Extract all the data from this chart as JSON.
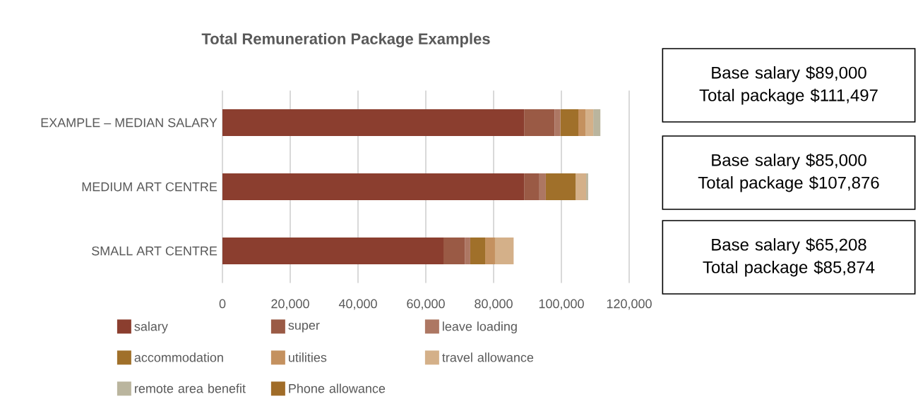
{
  "chart_data": {
    "type": "bar",
    "orientation": "horizontal",
    "stacked": true,
    "title": "Total Remuneration Package Examples",
    "categories": [
      "EXAMPLE – MEDIAN SALARY",
      "MEDIUM ART CENTRE",
      "SMALL ART CENTRE"
    ],
    "series": [
      {
        "name": "salary",
        "color": "#8b3e2f",
        "values": [
          89000,
          89000,
          65208
        ]
      },
      {
        "name": "super",
        "color": "#9a5a45",
        "values": [
          9000,
          4500,
          6300
        ]
      },
      {
        "name": "leave loading",
        "color": "#ad7763",
        "values": [
          1700,
          1900,
          1600
        ]
      },
      {
        "name": "accommodation",
        "color": "#a0702a",
        "values": [
          5300,
          8800,
          4400
        ]
      },
      {
        "name": "utilities",
        "color": "#c4915f",
        "values": [
          2100,
          0,
          2900
        ]
      },
      {
        "name": "travel allowance",
        "color": "#d4b089",
        "values": [
          2300,
          3100,
          5500
        ]
      },
      {
        "name": "remote area benefit",
        "color": "#bab59e",
        "values": [
          2100,
          600,
          0
        ]
      },
      {
        "name": "Phone allowance",
        "color": "#a06c28",
        "values": [
          0,
          0,
          0
        ]
      }
    ],
    "xlim": [
      0,
      120000
    ],
    "xticks": [
      0,
      {
        "value": 20000,
        "label": "20,000"
      },
      {
        "value": 40000,
        "label": "40,000"
      },
      {
        "value": 60000,
        "label": "60,000"
      },
      {
        "value": 80000,
        "label": "80,000"
      },
      {
        "value": 100000,
        "label": "100,000"
      },
      {
        "value": 120000,
        "label": "120,000"
      }
    ],
    "grid": "x",
    "legend": "bottom",
    "annotations": [
      "Base salary $89,000",
      "Total package $111,497",
      "Base salary $85,000",
      "Total package $107,876",
      "Base salary $65,208",
      "Total package $85,874"
    ]
  }
}
